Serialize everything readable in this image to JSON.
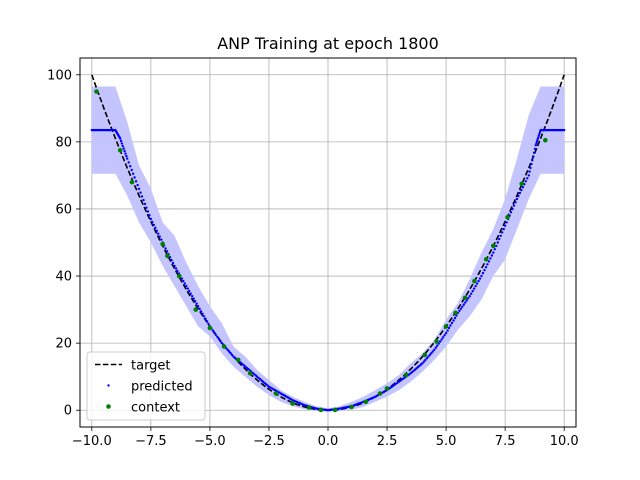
{
  "chart_data": {
    "type": "line",
    "title": "ANP Training at epoch 1800",
    "xlabel": "",
    "ylabel": "",
    "xlim": [
      -10.5,
      10.5
    ],
    "ylim": [
      -5,
      105
    ],
    "grid": true,
    "x_ticks": [
      -10,
      -7.5,
      -5,
      -2.5,
      0,
      2.5,
      5,
      7.5,
      10
    ],
    "x_tick_labels": [
      "−10.0",
      "−7.5",
      "−5.0",
      "−2.5",
      "0.0",
      "2.5",
      "5.0",
      "7.5",
      "10.0"
    ],
    "y_ticks": [
      0,
      20,
      40,
      60,
      80,
      100
    ],
    "y_tick_labels": [
      "0",
      "20",
      "40",
      "60",
      "80",
      "100"
    ],
    "legend": {
      "position": "lower-left",
      "entries": [
        {
          "label": "target",
          "style": "dashed-line",
          "color": "#000000"
        },
        {
          "label": "predicted",
          "style": "dot",
          "color": "#0000ff"
        },
        {
          "label": "context",
          "style": "dot",
          "color": "#008000"
        }
      ]
    },
    "series": [
      {
        "name": "target",
        "style": "dashed-line",
        "color": "#000000",
        "x": [
          -10,
          -9,
          -8,
          -7,
          -6,
          -5,
          -4,
          -3,
          -2,
          -1,
          0,
          1,
          2,
          3,
          4,
          5,
          6,
          7,
          8,
          9,
          10
        ],
        "y": [
          100,
          81,
          64,
          49,
          36,
          25,
          16,
          9,
          4,
          1,
          0,
          1,
          4,
          9,
          16,
          25,
          36,
          49,
          64,
          81,
          100
        ]
      },
      {
        "name": "predicted",
        "style": "dot",
        "color": "#0000ff",
        "x": [
          -10.0,
          -9.5,
          -9.0,
          -8.8,
          -8.5,
          -8.0,
          -7.5,
          -7.0,
          -6.5,
          -6.0,
          -5.5,
          -5.0,
          -4.5,
          -4.0,
          -3.5,
          -3.0,
          -2.5,
          -2.0,
          -1.5,
          -1.0,
          -0.5,
          0.0,
          0.5,
          1.0,
          1.5,
          2.0,
          2.5,
          3.0,
          3.5,
          4.0,
          4.5,
          5.0,
          5.5,
          6.0,
          6.5,
          7.0,
          7.5,
          8.0,
          8.5,
          8.8,
          9.0,
          9.5,
          10.0
        ],
        "y": [
          83.5,
          83.5,
          83.5,
          81,
          75,
          66,
          57,
          50,
          43,
          37,
          31,
          25,
          20,
          16,
          13,
          10,
          7,
          5,
          3,
          1.5,
          0.5,
          0,
          0.5,
          1.2,
          2.5,
          4,
          6,
          8.5,
          11,
          14,
          18,
          23,
          29,
          34,
          40,
          47,
          55,
          63,
          70,
          79,
          83.5,
          83.5,
          83.5
        ]
      },
      {
        "name": "context",
        "style": "dot",
        "color": "#008000",
        "x": [
          -9.8,
          -8.8,
          -8.3,
          -7.0,
          -6.8,
          -6.3,
          -5.6,
          -5.0,
          -4.4,
          -3.8,
          -3.3,
          -2.2,
          -1.5,
          -0.8,
          -0.3,
          0.3,
          1.0,
          1.6,
          2.2,
          2.5,
          3.3,
          4.1,
          4.6,
          5.0,
          5.4,
          5.8,
          6.2,
          6.7,
          7.0,
          7.6,
          8.2,
          9.2
        ],
        "y": [
          95,
          77.5,
          68,
          49.5,
          46,
          40,
          30,
          24.5,
          19,
          15,
          11,
          5,
          2,
          0.8,
          0.1,
          0.1,
          1,
          2.5,
          5,
          6.5,
          10.5,
          16.5,
          20.5,
          25,
          29,
          33.5,
          38.5,
          45,
          49,
          57.5,
          67.5,
          80.5
        ]
      }
    ],
    "uncertainty_band": {
      "color": "#c4c4ff",
      "x": [
        -10.0,
        -9.5,
        -9.0,
        -8.5,
        -8.0,
        -7.5,
        -7.0,
        -6.5,
        -6.0,
        -5.5,
        -5.0,
        -4.5,
        -4.0,
        -3.5,
        -3.0,
        -2.5,
        -2.0,
        -1.5,
        -1.0,
        -0.5,
        0.0,
        0.5,
        1.0,
        1.5,
        2.0,
        2.5,
        3.0,
        3.5,
        4.0,
        4.5,
        5.0,
        5.5,
        6.0,
        6.5,
        7.0,
        7.5,
        8.0,
        8.5,
        9.0,
        9.5,
        10.0
      ],
      "upper": [
        96.5,
        96.5,
        96.5,
        86,
        73,
        66,
        56,
        52,
        44,
        37,
        31,
        26,
        19,
        16,
        12,
        9,
        6,
        4,
        2.5,
        1.2,
        0.6,
        1.2,
        2.5,
        4,
        6,
        8,
        10.5,
        14,
        17,
        21,
        27,
        32,
        39,
        47,
        54,
        63,
        75,
        88,
        96.5,
        96.5,
        96.5
      ],
      "lower": [
        70.5,
        70.5,
        70.5,
        64,
        56,
        50,
        43,
        37,
        31,
        25,
        22,
        17,
        13,
        10,
        7,
        4.5,
        2.5,
        1.2,
        0.3,
        -0.3,
        -0.4,
        -0.3,
        0.2,
        1,
        2.5,
        4,
        6,
        8.5,
        11.5,
        15,
        19,
        24,
        28,
        33,
        40,
        45,
        54,
        63,
        70.5,
        70.5,
        70.5
      ]
    }
  }
}
